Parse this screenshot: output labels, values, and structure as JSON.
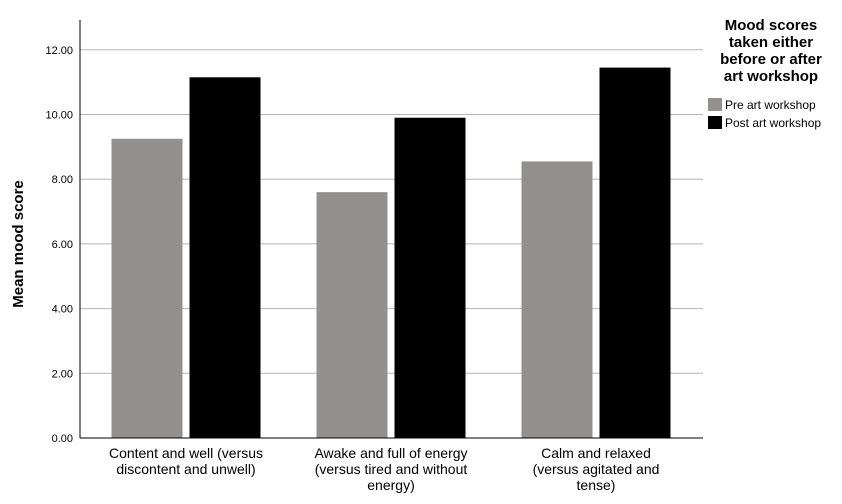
{
  "chart_data": {
    "type": "bar",
    "categories": [
      [
        "Content and well (versus",
        "discontent and unwell)"
      ],
      [
        "Awake and full of energy",
        "(versus tired and without",
        "energy)"
      ],
      [
        "Calm and relaxed",
        "(versus agitated and",
        "tense)"
      ]
    ],
    "series": [
      {
        "name": "Pre art workshop",
        "color": "#939090",
        "values": [
          9.25,
          7.6,
          8.55
        ]
      },
      {
        "name": "Post art workshop",
        "color": "#000000",
        "values": [
          11.15,
          9.9,
          11.45
        ]
      }
    ],
    "ylabel": "Mean mood score",
    "ylim": [
      0,
      13
    ],
    "yticks": [
      0,
      2,
      4,
      6,
      8,
      10,
      12
    ],
    "ytick_labels": [
      "0.00",
      "2.00",
      "4.00",
      "6.00",
      "8.00",
      "10.00",
      "12.00"
    ],
    "legend": {
      "title_lines": [
        "Mood scores",
        "taken either",
        "before or after",
        "art workshop"
      ],
      "placement": "top-right"
    },
    "grid": true
  }
}
